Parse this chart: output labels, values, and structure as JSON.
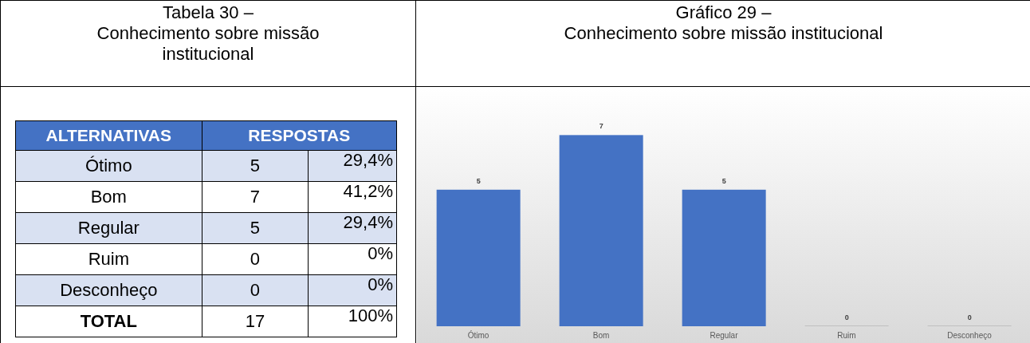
{
  "chart_data": [
    {
      "type": "other",
      "title": "Tabela 30 –\nConhecimento sobre missão\ninstitucional",
      "categories": [
        "Ótimo",
        "Bom",
        "Regular",
        "Ruim",
        "Desconheço",
        "TOTAL"
      ],
      "annotations": [
        "ALTERNATIVAS",
        "RESPOSTAS",
        "5",
        "29,4%",
        "7",
        "41,2%",
        "5",
        "29,4%",
        "0",
        "0%",
        "0",
        "0%",
        "17",
        "100%"
      ]
    },
    {
      "type": "bar",
      "title": "Gráfico 29 –\nConhecimento sobre missão institucional",
      "categories": [
        "Ótimo",
        "Bom",
        "Regular",
        "Ruim",
        "Desconheço"
      ],
      "values": [
        5,
        7,
        5,
        0,
        0
      ],
      "colors": [
        "#4472c4",
        "#4472c4",
        "#4472c4",
        "#bfbfbf",
        "#bfbfbf"
      ],
      "data_labels": true
    }
  ]
}
